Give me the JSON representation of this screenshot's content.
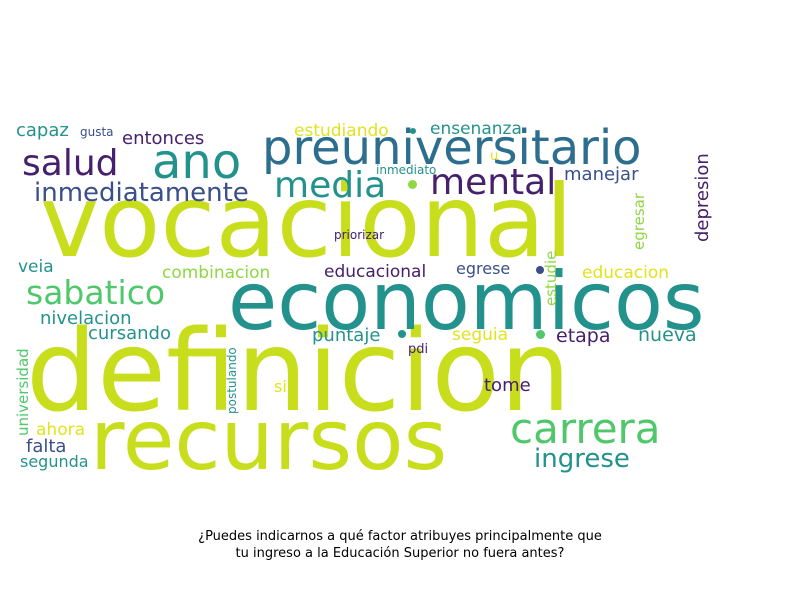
{
  "caption": {
    "line1": "¿Puedes indicarnos a qué factor atribuyes principalmente que",
    "line2": "tu ingreso a la Educación Superior no fuera antes?"
  },
  "colors": {
    "lime": "#c8dd1c",
    "green": "#50c76b",
    "teal": "#24928c",
    "blue": "#2c6e8e",
    "indigo": "#3b4f8a",
    "purple": "#46206c",
    "yellow": "#e1e31c",
    "mint": "#8fd744"
  },
  "words": [
    {
      "text": "vocacional",
      "color": "lime",
      "weight": 100,
      "orientation": "horizontal"
    },
    {
      "text": "definicion",
      "color": "lime",
      "weight": 100,
      "orientation": "horizontal"
    },
    {
      "text": "economicos",
      "color": "teal",
      "weight": 80,
      "orientation": "horizontal"
    },
    {
      "text": "recursos",
      "color": "lime",
      "weight": 85,
      "orientation": "horizontal"
    },
    {
      "text": "preuniversitario",
      "color": "blue",
      "weight": 45,
      "orientation": "horizontal"
    },
    {
      "text": "ano",
      "color": "teal",
      "weight": 45,
      "orientation": "horizontal"
    },
    {
      "text": "salud",
      "color": "purple",
      "weight": 33,
      "orientation": "horizontal"
    },
    {
      "text": "media",
      "color": "teal",
      "weight": 33,
      "orientation": "horizontal"
    },
    {
      "text": "mental",
      "color": "purple",
      "weight": 33,
      "orientation": "horizontal"
    },
    {
      "text": "carrera",
      "color": "green",
      "weight": 40,
      "orientation": "horizontal"
    },
    {
      "text": "sabatico",
      "color": "green",
      "weight": 32,
      "orientation": "horizontal"
    },
    {
      "text": "inmediatamente",
      "color": "indigo",
      "weight": 25,
      "orientation": "horizontal"
    },
    {
      "text": "ingrese",
      "color": "teal",
      "weight": 24,
      "orientation": "horizontal"
    },
    {
      "text": "capaz",
      "color": "teal",
      "weight": 17,
      "orientation": "horizontal"
    },
    {
      "text": "gusta",
      "color": "indigo",
      "weight": 12,
      "orientation": "horizontal"
    },
    {
      "text": "entonces",
      "color": "purple",
      "weight": 17,
      "orientation": "horizontal"
    },
    {
      "text": "estudiando",
      "color": "yellow",
      "weight": 16,
      "orientation": "horizontal"
    },
    {
      "text": "ensenanza",
      "color": "teal",
      "weight": 16,
      "orientation": "horizontal"
    },
    {
      "text": "u",
      "color": "yellow",
      "weight": 12,
      "orientation": "horizontal"
    },
    {
      "text": "inmediato",
      "color": "teal",
      "weight": 11,
      "orientation": "horizontal"
    },
    {
      "text": "manejar",
      "color": "indigo",
      "weight": 17,
      "orientation": "horizontal"
    },
    {
      "text": "depresion",
      "color": "purple",
      "weight": 16,
      "orientation": "vertical"
    },
    {
      "text": "egresar",
      "color": "mint",
      "weight": 14,
      "orientation": "vertical"
    },
    {
      "text": "priorizar",
      "color": "purple",
      "weight": 12,
      "orientation": "horizontal"
    },
    {
      "text": "estudie",
      "color": "mint",
      "weight": 14,
      "orientation": "vertical"
    },
    {
      "text": "veia",
      "color": "teal",
      "weight": 16,
      "orientation": "horizontal"
    },
    {
      "text": "combinacion",
      "color": "mint",
      "weight": 16,
      "orientation": "horizontal"
    },
    {
      "text": "educacional",
      "color": "purple",
      "weight": 16,
      "orientation": "horizontal"
    },
    {
      "text": "egrese",
      "color": "indigo",
      "weight": 15,
      "orientation": "horizontal"
    },
    {
      "text": "educacion",
      "color": "yellow",
      "weight": 16,
      "orientation": "horizontal"
    },
    {
      "text": "nivelacion",
      "color": "teal",
      "weight": 17,
      "orientation": "horizontal"
    },
    {
      "text": "universidad",
      "color": "green",
      "weight": 14,
      "orientation": "vertical"
    },
    {
      "text": "cursando",
      "color": "teal",
      "weight": 17,
      "orientation": "horizontal"
    },
    {
      "text": "puntaje",
      "color": "teal",
      "weight": 17,
      "orientation": "horizontal"
    },
    {
      "text": "seguia",
      "color": "yellow",
      "weight": 16,
      "orientation": "horizontal"
    },
    {
      "text": "etapa",
      "color": "purple",
      "weight": 18,
      "orientation": "horizontal"
    },
    {
      "text": "nueva",
      "color": "teal",
      "weight": 18,
      "orientation": "horizontal"
    },
    {
      "text": "postulando",
      "color": "teal",
      "weight": 11,
      "orientation": "vertical"
    },
    {
      "text": "pdi",
      "color": "purple",
      "weight": 12,
      "orientation": "horizontal"
    },
    {
      "text": "si",
      "color": "yellow",
      "weight": 15,
      "orientation": "horizontal"
    },
    {
      "text": "tome",
      "color": "purple",
      "weight": 17,
      "orientation": "horizontal"
    },
    {
      "text": "ahora",
      "color": "yellow",
      "weight": 16,
      "orientation": "horizontal"
    },
    {
      "text": "falta",
      "color": "indigo",
      "weight": 17,
      "orientation": "horizontal"
    },
    {
      "text": "segunda",
      "color": "teal",
      "weight": 15,
      "orientation": "horizontal"
    }
  ],
  "dots": [
    "mint",
    "indigo",
    "teal",
    "lime",
    "green",
    "teal",
    "lime"
  ]
}
